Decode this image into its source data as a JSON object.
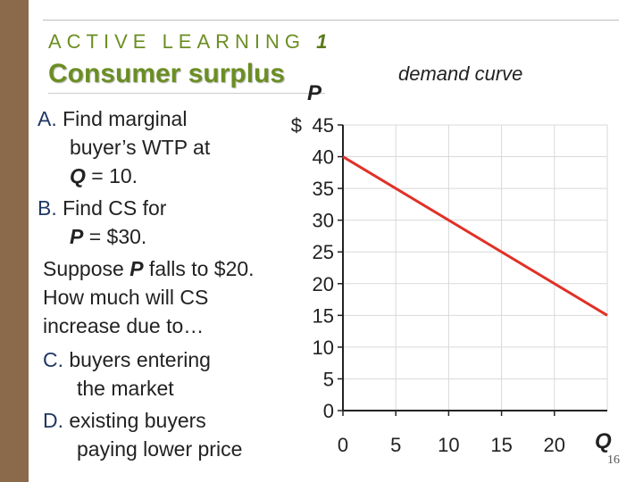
{
  "header": {
    "section_label": "ACTIVE LEARNING",
    "section_number": "1",
    "title": "Consumer surplus"
  },
  "questions": {
    "a_letter": "A.",
    "a_line1": "Find marginal",
    "a_line2": "buyer’s WTP at",
    "a_q": "Q",
    "a_rest": " = 10.",
    "b_letter": "B.",
    "b_line1": "Find CS for",
    "b_p": "P",
    "b_rest": " = $30.",
    "s1_pre": "Suppose ",
    "s1_p": "P",
    "s1_post": " falls to $20.",
    "s2": "How much will CS",
    "s3": "increase due to…",
    "c_letter": "C.",
    "c_line1": "buyers entering",
    "c_line2": "the market",
    "d_letter": "D.",
    "d_line1": "existing buyers",
    "d_line2": "paying lower price"
  },
  "slide_number": "16",
  "chart_data": {
    "type": "line",
    "title": "demand curve",
    "xlabel": "Q",
    "ylabel": "P",
    "y_prefix": "$",
    "xlim": [
      0,
      25
    ],
    "ylim": [
      0,
      45
    ],
    "x_ticks": [
      0,
      5,
      10,
      15,
      20
    ],
    "y_ticks": [
      0,
      5,
      10,
      15,
      20,
      25,
      30,
      35,
      40,
      45
    ],
    "grid": true,
    "series": [
      {
        "x": [
          0,
          25
        ],
        "y": [
          40,
          15
        ],
        "color": "#e03127"
      }
    ]
  }
}
